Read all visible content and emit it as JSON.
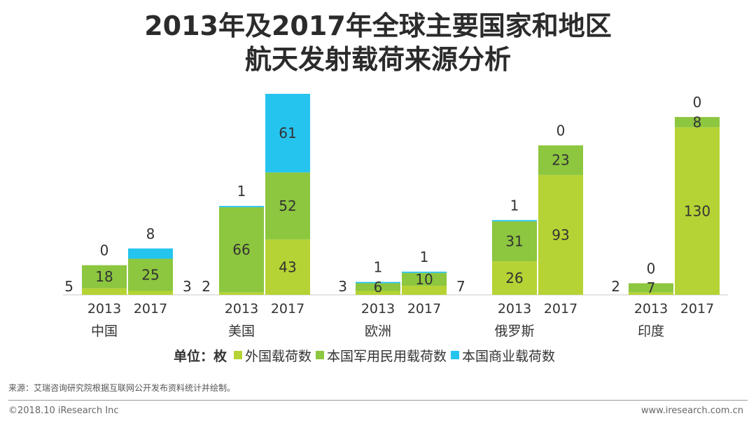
{
  "title_line1": "2013年及2017年全球主要国家和地区",
  "title_line2": "航天发射载荷来源分析",
  "chart_data": {
    "type": "bar",
    "stacked": true,
    "title": "2013年及2017年全球主要国家和地区航天发射载荷来源分析",
    "unit_label": "单位：枚",
    "regions": [
      "中国",
      "美国",
      "欧洲",
      "俄罗斯",
      "印度"
    ],
    "years": [
      "2013",
      "2017"
    ],
    "series": [
      {
        "name": "外国载荷数",
        "color": "#b5d334",
        "values": [
          [
            5,
            3
          ],
          [
            2,
            43
          ],
          [
            3,
            7
          ],
          [
            26,
            93
          ],
          [
            2,
            130
          ]
        ]
      },
      {
        "name": "本国军用民用载荷数",
        "color": "#8dc63f",
        "values": [
          [
            18,
            25
          ],
          [
            66,
            52
          ],
          [
            6,
            10
          ],
          [
            31,
            23
          ],
          [
            7,
            8
          ]
        ]
      },
      {
        "name": "本国商业载荷数",
        "color": "#25c4ee",
        "values": [
          [
            0,
            8
          ],
          [
            1,
            61
          ],
          [
            1,
            1
          ],
          [
            1,
            0
          ],
          [
            0,
            0
          ]
        ]
      }
    ]
  },
  "legend": {
    "unit": "单位：枚",
    "items": [
      {
        "label": "外国载荷数",
        "color": "#b5d334"
      },
      {
        "label": "本国军用民用载荷数",
        "color": "#8dc63f"
      },
      {
        "label": "本国商业载荷数",
        "color": "#25c4ee"
      }
    ]
  },
  "source": "来源：艾瑞咨询研究院根据互联网公开发布资料统计并绘制。",
  "copyright": "©2018.10 iResearch Inc",
  "website": "www.iresearch.com.cn"
}
